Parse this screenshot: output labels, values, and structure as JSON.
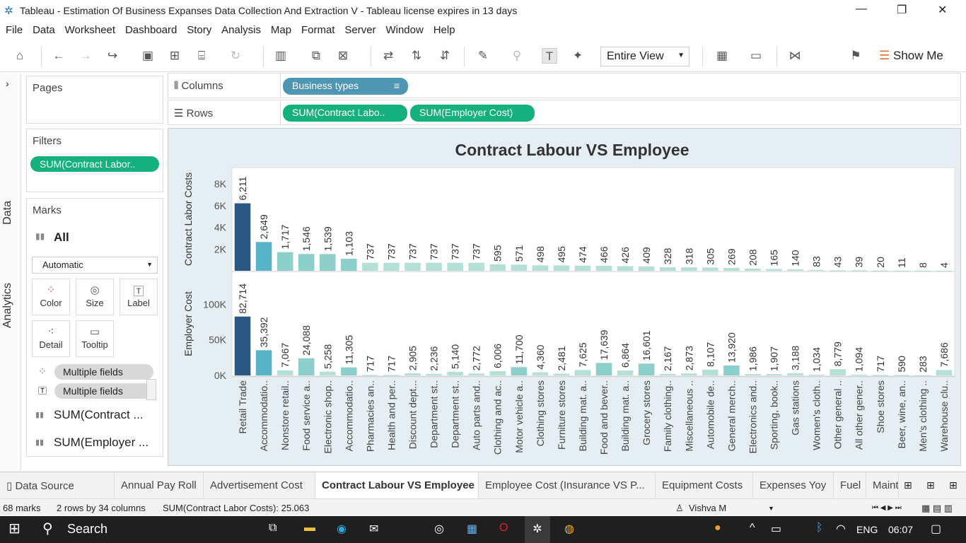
{
  "window": {
    "title": "Tableau - Estimation Of Business Expanses Data Collection And Extraction V - Tableau license expires in 13 days"
  },
  "menu": [
    "File",
    "Data",
    "Worksheet",
    "Dashboard",
    "Story",
    "Analysis",
    "Map",
    "Format",
    "Server",
    "Window",
    "Help"
  ],
  "toolbar": {
    "view_mode": "Entire View",
    "show_me": "Show Me"
  },
  "side_tabs": {
    "data": "Data",
    "analytics": "Analytics"
  },
  "pages": {
    "title": "Pages"
  },
  "filters": {
    "title": "Filters",
    "pill": "SUM(Contract Labor.."
  },
  "marks": {
    "title": "Marks",
    "all": "All",
    "type": "Automatic",
    "buttons": {
      "color": "Color",
      "size": "Size",
      "label": "Label",
      "detail": "Detail",
      "tooltip": "Tooltip"
    },
    "fields": [
      "Multiple fields",
      "Multiple fields"
    ],
    "measures": [
      "SUM(Contract ...",
      "SUM(Employer ..."
    ]
  },
  "shelves": {
    "columns_label": "Columns",
    "columns_pill": "Business types",
    "rows_label": "Rows",
    "rows_pills": [
      "SUM(Contract Labo..",
      "SUM(Employer Cost)"
    ]
  },
  "chart_data": {
    "type": "bar",
    "title": "Contract Labour VS Employee",
    "categories": [
      "Retail Trade",
      "Accommodatio..",
      "Nonstore retail..",
      "Food service a..",
      "Electronic shop..",
      "Accommodatio..",
      "Pharmacies an..",
      "Health and per..",
      "Discount dept...",
      "Department st..",
      "Department st..",
      "Auto parts and..",
      "Clothing and ac..",
      "Motor vehicle a..",
      "Clothing stores",
      "Furniture stores",
      "Building mat. a..",
      "Food and bever..",
      "Building mat. a..",
      "Grocery stores",
      "Family clothing..",
      "Miscellaneous ..",
      "Automobile de..",
      "General merch..",
      "Electronics and..",
      "Sporting, book..",
      "Gas stations",
      "Women's cloth..",
      "Other general ..",
      "All other gener..",
      "Shoe stores",
      "Beer, wine, an..",
      "Men's clothing ..",
      "Warehouse clu.."
    ],
    "series": [
      {
        "name": "Contract Labor Costs",
        "ylabel": "Contract Labor Costs",
        "ticks": [
          "8K",
          "6K",
          "4K",
          "2K"
        ],
        "ymax": 9500,
        "values": [
          6211,
          2649,
          1717,
          1546,
          1539,
          1103,
          737,
          737,
          737,
          737,
          737,
          737,
          595,
          571,
          498,
          495,
          474,
          466,
          426,
          409,
          328,
          318,
          305,
          269,
          208,
          165,
          140,
          83,
          43,
          39,
          20,
          11,
          8,
          4
        ],
        "labels": [
          "6,211",
          "2,649",
          "1,717",
          "1,546",
          "1,539",
          "1,103",
          "737",
          "737",
          "737",
          "737",
          "737",
          "737",
          "595",
          "571",
          "498",
          "495",
          "474",
          "466",
          "426",
          "409",
          "328",
          "318",
          "305",
          "269",
          "208",
          "165",
          "140",
          "83",
          "43",
          "39",
          "20",
          "11",
          "8",
          "4"
        ]
      },
      {
        "name": "Employer Cost",
        "ylabel": "Employer Cost",
        "ticks": [
          "100K",
          "50K",
          "0K"
        ],
        "ymax": 145000,
        "values": [
          82714,
          35392,
          7067,
          24088,
          5258,
          11305,
          717,
          717,
          2905,
          2236,
          5140,
          2772,
          6006,
          11700,
          4360,
          2481,
          7625,
          17639,
          6864,
          16601,
          2167,
          2873,
          8107,
          13920,
          1986,
          1907,
          3188,
          1034,
          8779,
          1094,
          717,
          590,
          283,
          7686
        ],
        "labels": [
          "82,714",
          "35,392",
          "7,067",
          "24,088",
          "5,258",
          "11,305",
          "717",
          "717",
          "2,905",
          "2,236",
          "5,140",
          "2,772",
          "6,006",
          "11,700",
          "4,360",
          "2,481",
          "7,625",
          "17,639",
          "6,864",
          "16,601",
          "2,167",
          "2,873",
          "8,107",
          "13,920",
          "1,986",
          "1,907",
          "3,188",
          "1,034",
          "8,779",
          "1,094",
          "717",
          "590",
          "283",
          "7,686"
        ]
      }
    ],
    "colors": {
      "max": "#2a5783",
      "high": "#5ab4c7",
      "low": "#b4e0d8"
    }
  },
  "tabs": [
    "Data Source",
    "Annual Pay Roll",
    "Advertisement Cost",
    "Contract Labour VS Employee",
    "Employee Cost (Insurance VS P...",
    "Equipment Costs",
    "Expenses Yoy",
    "Fuel",
    "Maint"
  ],
  "status": {
    "marks": "68 marks",
    "dims": "2 rows by 34 columns",
    "sum": "SUM(Contract Labor Costs): 25.063",
    "user": "Vishva M"
  },
  "taskbar": {
    "search": "Search",
    "lang": "ENG",
    "time": "06:07"
  }
}
